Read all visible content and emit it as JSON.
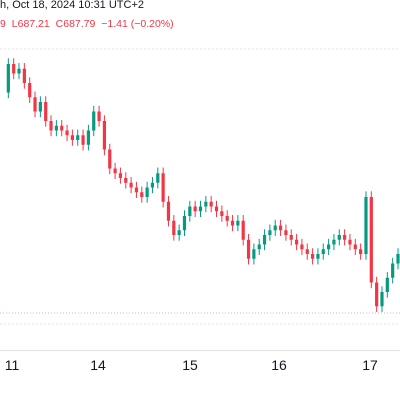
{
  "header": {
    "timestamp": "h, Oct 18, 2024 10:31 UTC+2",
    "ohlc": {
      "open_tail": "9",
      "low": "L687.21",
      "close": "C687.79",
      "change": "−1.41 (−0.20%)"
    }
  },
  "colors": {
    "up": "#089981",
    "down": "#f23645",
    "axis_text": "#131722",
    "ref_line": "#f7a8ad",
    "grid": "#e0e3eb"
  },
  "chart_data": {
    "type": "candlestick",
    "x_tick_labels": [
      "11",
      "14",
      "15",
      "16",
      "17"
    ],
    "reference_lines": [
      {
        "style": "dotted",
        "note": "previous close marker near top"
      },
      {
        "style": "dotted",
        "note": "marker near bottom"
      }
    ],
    "price_path": [
      720,
      726,
      724,
      725,
      722,
      719,
      716,
      718,
      714,
      712,
      713,
      712,
      711,
      710,
      711,
      709,
      712,
      716,
      714,
      708,
      704,
      703,
      702,
      701,
      700,
      699,
      698,
      700,
      701,
      703,
      697,
      693,
      690,
      691,
      694,
      696,
      695,
      696,
      697,
      696,
      695,
      694,
      693,
      692,
      693,
      689,
      685,
      687,
      688,
      690,
      691,
      692,
      691,
      690,
      689,
      688,
      687,
      686,
      685,
      686,
      687,
      688,
      689,
      690,
      689,
      688,
      687,
      686,
      698,
      680,
      675,
      678,
      681,
      684,
      686
    ]
  }
}
